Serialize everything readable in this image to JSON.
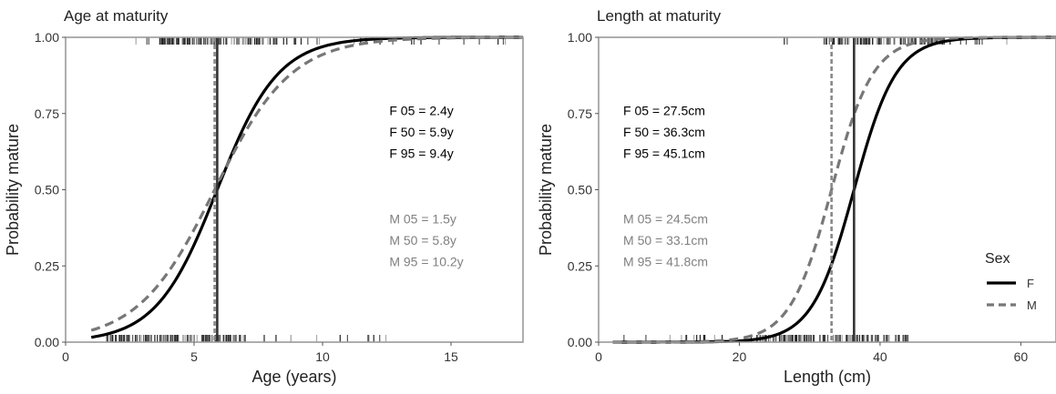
{
  "chart_data": [
    {
      "id": "age",
      "type": "line",
      "title": "Age at maturity",
      "xlabel": "Age (years)",
      "ylabel": "Probability mature",
      "xlim": [
        0,
        17.8
      ],
      "ylim": [
        0,
        1
      ],
      "xticks": [
        0,
        5,
        10,
        15
      ],
      "yticks": [
        0,
        0.25,
        0.5,
        0.75,
        1
      ],
      "ytick_labels": [
        "0.00",
        "0.25",
        "0.50",
        "0.75",
        "1.00"
      ],
      "grid": false,
      "series": [
        {
          "name": "F",
          "a50": 5.9,
          "a95": 9.4,
          "x_range": [
            1.0,
            17.8
          ],
          "style": "solid",
          "color": "#000000"
        },
        {
          "name": "M",
          "a50": 5.8,
          "a95": 10.2,
          "x_range": [
            1.0,
            17.8
          ],
          "style": "dashed",
          "color": "#777777"
        }
      ],
      "vlines": [
        {
          "series": "F",
          "x": 5.9,
          "style": "solid",
          "color": "#333333"
        },
        {
          "series": "M",
          "x": 5.8,
          "style": "dashed",
          "color": "#888888"
        }
      ],
      "annotations": [
        {
          "text": "F 05 = 2.4y",
          "x": 12.6,
          "y": 0.745,
          "color": "#000000"
        },
        {
          "text": "F 50 = 5.9y",
          "x": 12.6,
          "y": 0.675,
          "color": "#000000"
        },
        {
          "text": "F 95 = 9.4y",
          "x": 12.6,
          "y": 0.605,
          "color": "#000000"
        },
        {
          "text": "M 05 = 1.5y",
          "x": 12.6,
          "y": 0.39,
          "color": "#808080"
        },
        {
          "text": "M 50 = 5.8y",
          "x": 12.6,
          "y": 0.32,
          "color": "#808080"
        },
        {
          "text": "M 95 = 10.2y",
          "x": 12.6,
          "y": 0.25,
          "color": "#808080"
        }
      ],
      "rug_top": {
        "x_range": [
          2.7,
          17.8
        ],
        "dense_range": [
          3.6,
          8.5
        ]
      },
      "rug_bottom": {
        "x_range": [
          1.6,
          12.8
        ],
        "dense_range": [
          1.6,
          7.0
        ]
      }
    },
    {
      "id": "length",
      "type": "line",
      "title": "Length at maturity",
      "xlabel": "Length  (cm)",
      "ylabel": "Probability mature",
      "xlim": [
        0,
        65
      ],
      "ylim": [
        0,
        1
      ],
      "xticks": [
        0,
        20,
        40,
        60
      ],
      "yticks": [
        0,
        0.25,
        0.5,
        0.75,
        1
      ],
      "ytick_labels": [
        "0.00",
        "0.25",
        "0.50",
        "0.75",
        "1.00"
      ],
      "grid": false,
      "series": [
        {
          "name": "F",
          "a50": 36.3,
          "a95": 45.1,
          "x_range": [
            2.0,
            65.0
          ],
          "style": "solid",
          "color": "#000000"
        },
        {
          "name": "M",
          "a50": 33.1,
          "a95": 41.8,
          "x_range": [
            2.0,
            65.0
          ],
          "style": "dashed",
          "color": "#777777"
        }
      ],
      "vlines": [
        {
          "series": "F",
          "x": 36.3,
          "style": "solid",
          "color": "#333333"
        },
        {
          "series": "M",
          "x": 33.1,
          "style": "dashed",
          "color": "#888888"
        }
      ],
      "annotations": [
        {
          "text": "F 05 = 27.5cm",
          "x": 3.5,
          "y": 0.745,
          "color": "#000000"
        },
        {
          "text": "F 50 = 36.3cm",
          "x": 3.5,
          "y": 0.675,
          "color": "#000000"
        },
        {
          "text": "F 95 = 45.1cm",
          "x": 3.5,
          "y": 0.605,
          "color": "#000000"
        },
        {
          "text": "M 05 = 24.5cm",
          "x": 3.5,
          "y": 0.39,
          "color": "#808080"
        },
        {
          "text": "M 50 = 33.1cm",
          "x": 3.5,
          "y": 0.32,
          "color": "#808080"
        },
        {
          "text": "M 95 = 41.8cm",
          "x": 3.5,
          "y": 0.25,
          "color": "#808080"
        }
      ],
      "rug_top": {
        "x_range": [
          26.0,
          59.0
        ],
        "dense_range": [
          32.0,
          50.0
        ]
      },
      "rug_bottom": {
        "x_range": [
          3.0,
          45.0
        ],
        "dense_range": [
          22.0,
          44.0
        ]
      },
      "legend": {
        "title": "Sex",
        "placement": "right",
        "entries": [
          {
            "label": "F",
            "style": "solid",
            "color": "#000000"
          },
          {
            "label": "M",
            "style": "dashed",
            "color": "#777777"
          }
        ]
      }
    }
  ]
}
